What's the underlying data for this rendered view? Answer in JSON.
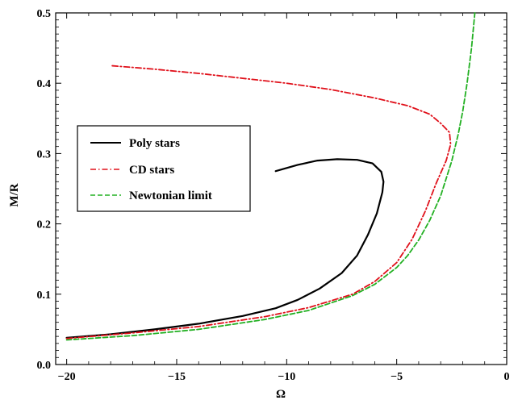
{
  "chart_data": {
    "type": "line",
    "xlabel": "Ω",
    "ylabel": "M/R",
    "xlim": [
      -20.5,
      0
    ],
    "ylim": [
      0,
      0.5
    ],
    "xticks": [
      -20,
      -15,
      -10,
      -5,
      0
    ],
    "xtick_labels": [
      "−20",
      "−15",
      "−10",
      "−5",
      "0"
    ],
    "yticks": [
      0.0,
      0.1,
      0.2,
      0.3,
      0.4,
      0.5
    ],
    "ytick_labels": [
      "0.0",
      "0.1",
      "0.2",
      "0.3",
      "0.4",
      "0.5"
    ],
    "legend_position": "center-left",
    "series": [
      {
        "name": "Poly stars",
        "color": "#000000",
        "dash": "solid",
        "points": [
          [
            -20,
            0.038
          ],
          [
            -18,
            0.043
          ],
          [
            -16,
            0.05
          ],
          [
            -14,
            0.058
          ],
          [
            -12,
            0.069
          ],
          [
            -10.5,
            0.08
          ],
          [
            -9.5,
            0.092
          ],
          [
            -8.5,
            0.108
          ],
          [
            -7.5,
            0.13
          ],
          [
            -6.8,
            0.155
          ],
          [
            -6.3,
            0.185
          ],
          [
            -5.9,
            0.215
          ],
          [
            -5.65,
            0.245
          ],
          [
            -5.6,
            0.26
          ],
          [
            -5.7,
            0.274
          ],
          [
            -6.1,
            0.286
          ],
          [
            -6.8,
            0.291
          ],
          [
            -7.7,
            0.292
          ],
          [
            -8.6,
            0.29
          ],
          [
            -9.5,
            0.284
          ],
          [
            -10.5,
            0.275
          ]
        ]
      },
      {
        "name": "CD stars",
        "color": "#e0101a",
        "dash": "dashdot",
        "points": [
          [
            -20,
            0.037
          ],
          [
            -17,
            0.045
          ],
          [
            -14,
            0.054
          ],
          [
            -11,
            0.068
          ],
          [
            -9,
            0.081
          ],
          [
            -7,
            0.1
          ],
          [
            -6,
            0.118
          ],
          [
            -5,
            0.145
          ],
          [
            -4.3,
            0.178
          ],
          [
            -3.7,
            0.218
          ],
          [
            -3.2,
            0.258
          ],
          [
            -2.75,
            0.29
          ],
          [
            -2.55,
            0.313
          ],
          [
            -2.6,
            0.33
          ],
          [
            -3.0,
            0.343
          ],
          [
            -3.5,
            0.356
          ],
          [
            -4.5,
            0.368
          ],
          [
            -6,
            0.379
          ],
          [
            -8,
            0.391
          ],
          [
            -10,
            0.4
          ],
          [
            -12,
            0.407
          ],
          [
            -14,
            0.414
          ],
          [
            -16,
            0.42
          ],
          [
            -18,
            0.425
          ]
        ]
      },
      {
        "name": "Newtonian limit",
        "color": "#22b022",
        "dash": "dashed",
        "points": [
          [
            -20,
            0.035
          ],
          [
            -17,
            0.041
          ],
          [
            -14,
            0.05
          ],
          [
            -11,
            0.064
          ],
          [
            -9,
            0.077
          ],
          [
            -7,
            0.098
          ],
          [
            -6,
            0.114
          ],
          [
            -5,
            0.138
          ],
          [
            -4.5,
            0.155
          ],
          [
            -4,
            0.177
          ],
          [
            -3.5,
            0.205
          ],
          [
            -3,
            0.24
          ],
          [
            -2.5,
            0.289
          ],
          [
            -2.2,
            0.328
          ],
          [
            -2,
            0.36
          ],
          [
            -1.8,
            0.4
          ],
          [
            -1.6,
            0.45
          ],
          [
            -1.45,
            0.5
          ]
        ]
      }
    ]
  }
}
